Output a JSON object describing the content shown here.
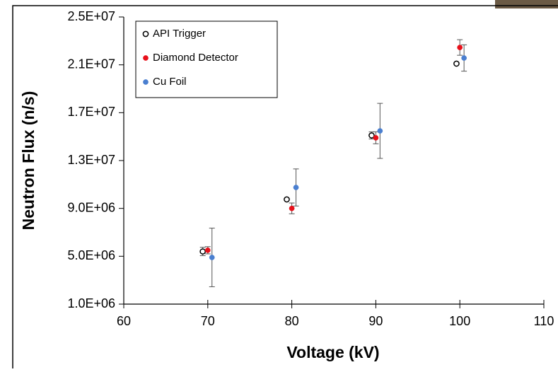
{
  "chart_data": {
    "type": "scatter",
    "xlabel": "Voltage (kV)",
    "ylabel": "Neutron Flux (n/s)",
    "xlim": [
      60,
      110
    ],
    "xticks": [
      60,
      70,
      80,
      90,
      100,
      110
    ],
    "ylim": [
      1000000,
      25000000
    ],
    "yticks": [
      {
        "value": 1000000,
        "label": "1.0E+06"
      },
      {
        "value": 5000000,
        "label": "5.0E+06"
      },
      {
        "value": 9000000,
        "label": "9.0E+06"
      },
      {
        "value": 13000000,
        "label": "1.3E+07"
      },
      {
        "value": 17000000,
        "label": "1.7E+07"
      },
      {
        "value": 21000000,
        "label": "2.1E+07"
      },
      {
        "value": 25000000,
        "label": "2.5E+07"
      }
    ],
    "grid": false,
    "legend": "upper left",
    "series": [
      {
        "name": "API Trigger",
        "color": "#000000",
        "marker": "open",
        "x": [
          69.4,
          79.4,
          89.5,
          99.6
        ],
        "values": [
          5400000,
          9750000,
          15100000,
          21100000
        ],
        "errors": [
          350000,
          null,
          300000,
          null
        ]
      },
      {
        "name": "Diamond Detector",
        "color": "#e8101a",
        "marker": "filled",
        "x": [
          70,
          80,
          90,
          100
        ],
        "values": [
          5500000,
          9000000,
          14900000,
          22450000
        ],
        "errors": [
          300000,
          450000,
          500000,
          650000
        ]
      },
      {
        "name": "Cu Foil",
        "color": "#4a7fd0",
        "marker": "filled",
        "x": [
          70.5,
          80.5,
          90.5,
          100.5
        ],
        "values": [
          4900000,
          10750000,
          15480000,
          21570000
        ],
        "errors": [
          2450000,
          1550000,
          2300000,
          1100000
        ]
      }
    ]
  }
}
